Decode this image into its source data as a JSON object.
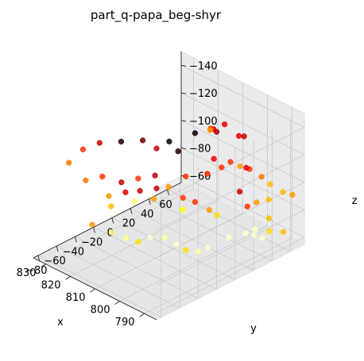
{
  "chart_data": {
    "type": "scatter3d",
    "title": "part_q-papa_beg-shyr",
    "xlabel": "x",
    "ylabel": "y",
    "zlabel": "z",
    "xlim": [
      785,
      835
    ],
    "ylim": [
      -85,
      75
    ],
    "zlim": [
      -150,
      -55
    ],
    "zinverted": true,
    "xticks": [
      790,
      800,
      810,
      820,
      830
    ],
    "yticks": [
      -80,
      -60,
      -40,
      -20,
      0,
      20,
      40,
      60
    ],
    "zticks": [
      -140,
      -120,
      -100,
      -80,
      -60
    ],
    "xticklabels": [
      "790",
      "800",
      "810",
      "820",
      "830"
    ],
    "yticklabels": [
      "−80",
      "−60",
      "−40",
      "−20",
      "0",
      "20",
      "40",
      "60"
    ],
    "zticklabels": [
      "−140",
      "−120",
      "−100",
      "−80",
      "−60"
    ],
    "colormap": "hot",
    "grid": true,
    "points": [
      {
        "x": 830,
        "y": -60,
        "z": -120,
        "c": 0.55
      },
      {
        "x": 828,
        "y": -50,
        "z": -128,
        "c": 0.45
      },
      {
        "x": 825,
        "y": -40,
        "z": -132,
        "c": 0.3
      },
      {
        "x": 820,
        "y": -30,
        "z": -134,
        "c": 0.05
      },
      {
        "x": 815,
        "y": -20,
        "z": -136,
        "c": 0.15
      },
      {
        "x": 808,
        "y": -10,
        "z": -138,
        "c": 0.0
      },
      {
        "x": 805,
        "y": 10,
        "z": -140,
        "c": 0.0
      },
      {
        "x": 800,
        "y": 20,
        "z": -142,
        "c": 0.25
      },
      {
        "x": 805,
        "y": 30,
        "z": -136,
        "c": 0.3
      },
      {
        "x": 808,
        "y": 35,
        "z": -132,
        "c": 0.45
      },
      {
        "x": 810,
        "y": 40,
        "z": -128,
        "c": 0.45
      },
      {
        "x": 812,
        "y": 45,
        "z": -124,
        "c": 0.6
      },
      {
        "x": 815,
        "y": -5,
        "z": -125,
        "c": 0.3
      },
      {
        "x": 810,
        "y": 5,
        "z": -124,
        "c": 0.05
      },
      {
        "x": 825,
        "y": -55,
        "z": -110,
        "c": 0.55
      },
      {
        "x": 822,
        "y": -45,
        "z": -112,
        "c": 0.45
      },
      {
        "x": 818,
        "y": -35,
        "z": -108,
        "c": 0.3
      },
      {
        "x": 815,
        "y": -25,
        "z": -110,
        "c": 0.45
      },
      {
        "x": 810,
        "y": -20,
        "z": -115,
        "c": 0.3
      },
      {
        "x": 805,
        "y": 0,
        "z": -112,
        "c": 0.45
      },
      {
        "x": 800,
        "y": 10,
        "z": -115,
        "c": 0.45
      },
      {
        "x": 798,
        "y": 20,
        "z": -118,
        "c": 0.45
      },
      {
        "x": 803,
        "y": 25,
        "z": -118,
        "c": 0.35
      },
      {
        "x": 800,
        "y": 35,
        "z": -115,
        "c": 0.45
      },
      {
        "x": 798,
        "y": 40,
        "z": -112,
        "c": 0.6
      },
      {
        "x": 796,
        "y": 45,
        "z": -110,
        "c": 0.45
      },
      {
        "x": 808,
        "y": 50,
        "z": -130,
        "c": 0.35
      },
      {
        "x": 802,
        "y": 55,
        "z": -125,
        "c": 0.3
      },
      {
        "x": 806,
        "y": 60,
        "z": -120,
        "c": 0.35
      },
      {
        "x": 800,
        "y": 52,
        "z": -105,
        "c": 0.35
      },
      {
        "x": 796,
        "y": 58,
        "z": -100,
        "c": 0.55
      },
      {
        "x": 794,
        "y": 62,
        "z": -95,
        "c": 0.65
      },
      {
        "x": 790,
        "y": 65,
        "z": -92,
        "c": 0.65
      },
      {
        "x": 788,
        "y": 70,
        "z": -90,
        "c": 0.6
      },
      {
        "x": 792,
        "y": 55,
        "z": -88,
        "c": 0.65
      },
      {
        "x": 795,
        "y": 50,
        "z": -85,
        "c": 0.6
      },
      {
        "x": 798,
        "y": 48,
        "z": -80,
        "c": 0.45
      },
      {
        "x": 800,
        "y": 45,
        "z": -90,
        "c": 0.3
      },
      {
        "x": 825,
        "y": -30,
        "z": -90,
        "c": 0.6
      },
      {
        "x": 822,
        "y": -20,
        "z": -92,
        "c": 0.35
      },
      {
        "x": 818,
        "y": -15,
        "z": -95,
        "c": 0.3
      },
      {
        "x": 815,
        "y": -5,
        "z": -96,
        "c": 0.3
      },
      {
        "x": 812,
        "y": 0,
        "z": -98,
        "c": 0.6
      },
      {
        "x": 808,
        "y": 5,
        "z": -92,
        "c": 0.45
      },
      {
        "x": 805,
        "y": 10,
        "z": -90,
        "c": 0.45
      },
      {
        "x": 800,
        "y": 12,
        "z": -88,
        "c": 0.6
      },
      {
        "x": 798,
        "y": 15,
        "z": -85,
        "c": 0.7
      },
      {
        "x": 826,
        "y": -25,
        "z": -80,
        "c": 0.65
      },
      {
        "x": 822,
        "y": -10,
        "z": -82,
        "c": 0.85
      },
      {
        "x": 818,
        "y": 0,
        "z": -84,
        "c": 0.6
      },
      {
        "x": 810,
        "y": 10,
        "z": -80,
        "c": 0.75
      },
      {
        "x": 828,
        "y": -40,
        "z": -70,
        "c": 0.6
      },
      {
        "x": 822,
        "y": -35,
        "z": -68,
        "c": 0.85
      },
      {
        "x": 818,
        "y": -30,
        "z": -66,
        "c": 0.9
      },
      {
        "x": 815,
        "y": -25,
        "z": -64,
        "c": 0.7
      },
      {
        "x": 812,
        "y": -20,
        "z": -68,
        "c": 0.95
      },
      {
        "x": 808,
        "y": -15,
        "z": -70,
        "c": 0.9
      },
      {
        "x": 805,
        "y": -10,
        "z": -66,
        "c": 0.95
      },
      {
        "x": 802,
        "y": -8,
        "z": -64,
        "c": 0.7
      },
      {
        "x": 800,
        "y": 0,
        "z": -62,
        "c": 0.9
      },
      {
        "x": 798,
        "y": 5,
        "z": -65,
        "c": 0.95
      },
      {
        "x": 795,
        "y": 20,
        "z": -70,
        "c": 0.95
      },
      {
        "x": 792,
        "y": 30,
        "z": -72,
        "c": 0.95
      },
      {
        "x": 790,
        "y": 35,
        "z": -75,
        "c": 0.95
      },
      {
        "x": 788,
        "y": 45,
        "z": -72,
        "c": 0.7
      },
      {
        "x": 790,
        "y": 50,
        "z": -78,
        "c": 0.65
      },
      {
        "x": 786,
        "y": 55,
        "z": -70,
        "c": 0.65
      },
      {
        "x": 789,
        "y": 40,
        "z": -68,
        "c": 0.95
      },
      {
        "x": 793,
        "y": 42,
        "z": -66,
        "c": 0.95
      }
    ]
  }
}
